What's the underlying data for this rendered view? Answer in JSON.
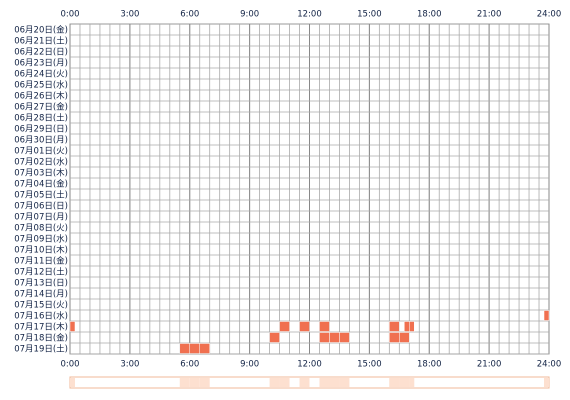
{
  "chart_data": {
    "type": "timeline",
    "categories": [
      "06月20日(金)",
      "06月21日(土)",
      "06月22日(日)",
      "06月23日(月)",
      "06月24日(火)",
      "06月25日(水)",
      "06月26日(木)",
      "06月27日(金)",
      "06月28日(土)",
      "06月29日(日)",
      "06月30日(月)",
      "07月01日(火)",
      "07月02日(水)",
      "07月03日(木)",
      "07月04日(金)",
      "07月05日(土)",
      "07月06日(日)",
      "07月07日(月)",
      "07月08日(火)",
      "07月09日(水)",
      "07月10日(木)",
      "07月11日(金)",
      "07月12日(土)",
      "07月13日(日)",
      "07月14日(月)",
      "07月15日(火)",
      "07月16日(水)",
      "07月17日(木)",
      "07月18日(金)",
      "07月19日(土)"
    ],
    "periods": [
      [],
      [],
      [],
      [],
      [],
      [],
      [],
      [],
      [],
      [],
      [],
      [],
      [],
      [],
      [],
      [],
      [],
      [],
      [],
      [],
      [],
      [],
      [],
      [],
      [],
      [],
      [
        [
          23.75,
          24
        ]
      ],
      [
        [
          0,
          0.25
        ],
        [
          10.5,
          11
        ],
        [
          11.5,
          12
        ],
        [
          12.5,
          13
        ],
        [
          16,
          16.5
        ],
        [
          16.75,
          17
        ],
        [
          17,
          17.25
        ]
      ],
      [
        [
          10,
          10.5
        ],
        [
          12.5,
          13
        ],
        [
          13,
          13.5
        ],
        [
          13.5,
          14
        ],
        [
          16,
          16.5
        ],
        [
          16.5,
          17
        ]
      ],
      [
        [
          5.5,
          6
        ],
        [
          6,
          6.5
        ],
        [
          6.5,
          7
        ]
      ]
    ],
    "xlim": [
      0,
      24
    ],
    "xticks": [
      {
        "value": 0,
        "label": "0:00"
      },
      {
        "value": 3,
        "label": "3:00"
      },
      {
        "value": 6,
        "label": "6:00"
      },
      {
        "value": 9,
        "label": "9:00"
      },
      {
        "value": 12,
        "label": "12:00"
      },
      {
        "value": 15,
        "label": "15:00"
      },
      {
        "value": 18,
        "label": "18:00"
      },
      {
        "value": 21,
        "label": "21:00"
      },
      {
        "value": 24,
        "label": "24:00"
      }
    ],
    "minor_grid": 0.5,
    "color": "#f07050",
    "summary_color": "#fde0d0"
  }
}
